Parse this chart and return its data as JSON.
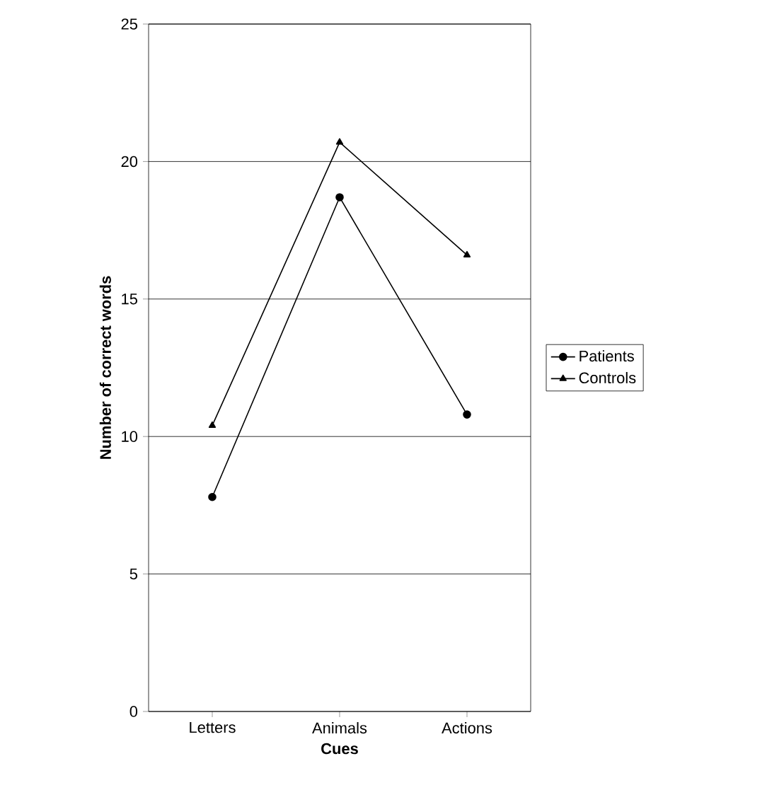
{
  "chart_data": {
    "type": "line",
    "xlabel": "Cues",
    "ylabel": "Number of correct words",
    "categories": [
      "Letters",
      "Animals",
      "Actions"
    ],
    "series": [
      {
        "name": "Patients",
        "color": "#000000",
        "marker": "circle",
        "values": [
          7.8,
          18.7,
          10.8
        ]
      },
      {
        "name": "Controls",
        "color": "#000000",
        "marker": "triangle",
        "values": [
          10.4,
          20.7,
          16.6
        ]
      }
    ],
    "ylim": [
      0,
      25
    ],
    "yticks": [
      0,
      5,
      10,
      15,
      20,
      25
    ],
    "grid": "y",
    "legend": "right",
    "line_style": "solid"
  }
}
